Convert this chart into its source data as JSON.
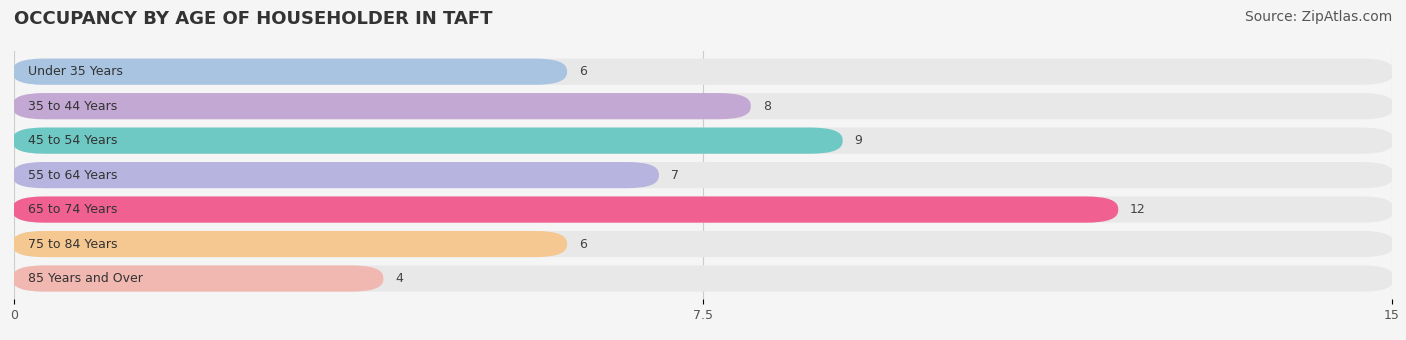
{
  "title": "OCCUPANCY BY AGE OF HOUSEHOLDER IN TAFT",
  "source": "Source: ZipAtlas.com",
  "categories": [
    "Under 35 Years",
    "35 to 44 Years",
    "45 to 54 Years",
    "55 to 64 Years",
    "65 to 74 Years",
    "75 to 84 Years",
    "85 Years and Over"
  ],
  "values": [
    6,
    8,
    9,
    7,
    12,
    6,
    4
  ],
  "bar_colors": [
    "#a8c4e0",
    "#c4a8d4",
    "#6ec9c4",
    "#b8b4e0",
    "#f06090",
    "#f4c890",
    "#f0b8b0"
  ],
  "xlim": [
    0,
    15
  ],
  "xticks": [
    0,
    7.5,
    15
  ],
  "background_color": "#f5f5f5",
  "bar_background_color": "#e8e8e8",
  "title_fontsize": 13,
  "source_fontsize": 10,
  "label_fontsize": 9,
  "value_fontsize": 9
}
